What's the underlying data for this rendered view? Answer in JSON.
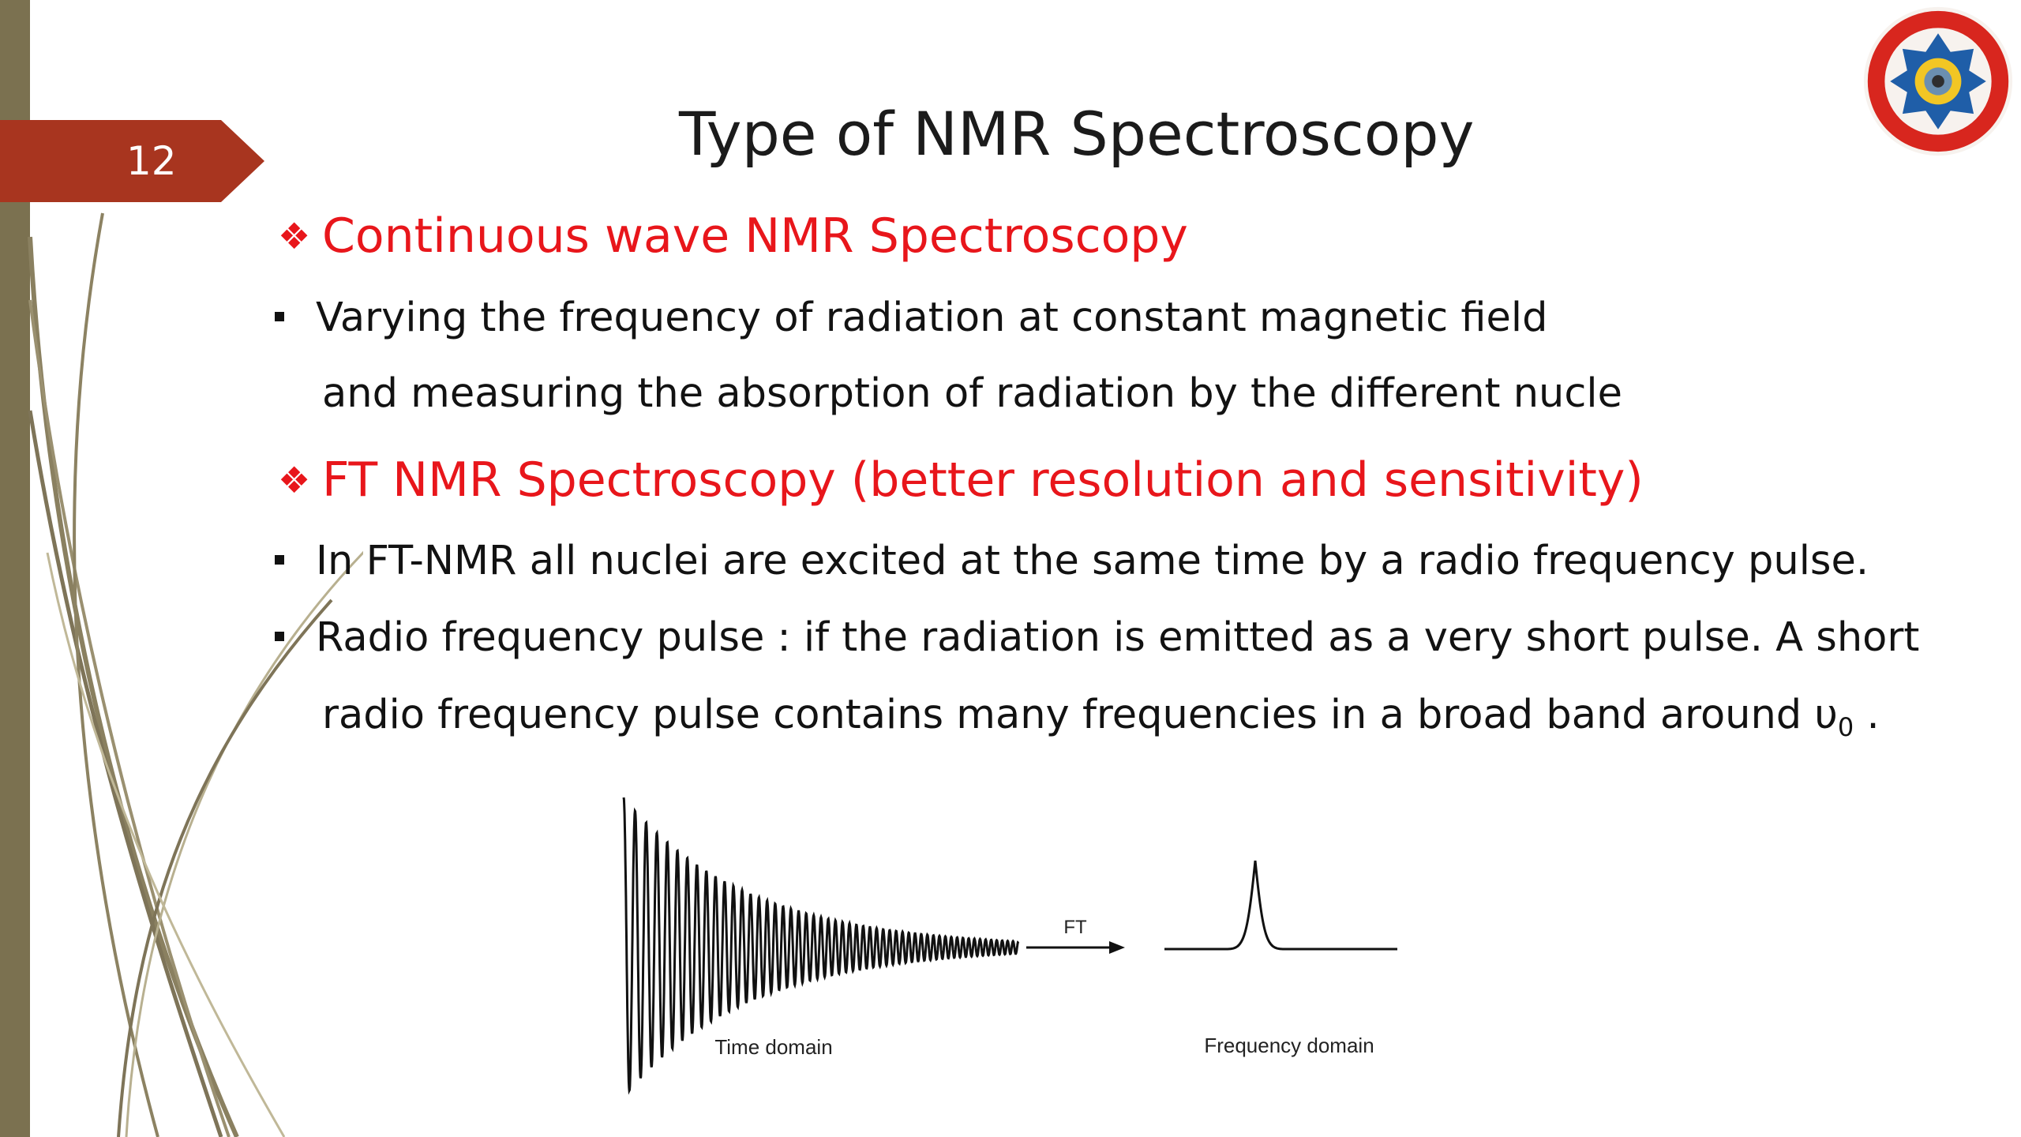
{
  "slide": {
    "number": "12",
    "title": "Type of NMR Spectroscopy"
  },
  "sections": [
    {
      "heading": "Continuous wave NMR Spectroscopy",
      "bullets": [
        "Varying the frequency of radiation at constant magnetic field",
        "and measuring the absorption of radiation by the different nucle"
      ]
    },
    {
      "heading": "FT NMR Spectroscopy (better resolution and sensitivity)",
      "bullets": [
        "In FT-NMR all nuclei are excited at the same time by a radio frequency pulse.",
        "Radio frequency pulse : if the radiation is emitted as a very short pulse. A short",
        "radio frequency pulse contains many frequencies in a broad band around υ",
        "0",
        " ."
      ]
    }
  ],
  "figure": {
    "left_caption": "Time domain",
    "arrow_label": "FT",
    "right_caption": "Frequency domain"
  },
  "colors": {
    "heading": "#e8161b",
    "number_tab": "#a8351f",
    "side_bar": "#7b7150"
  }
}
